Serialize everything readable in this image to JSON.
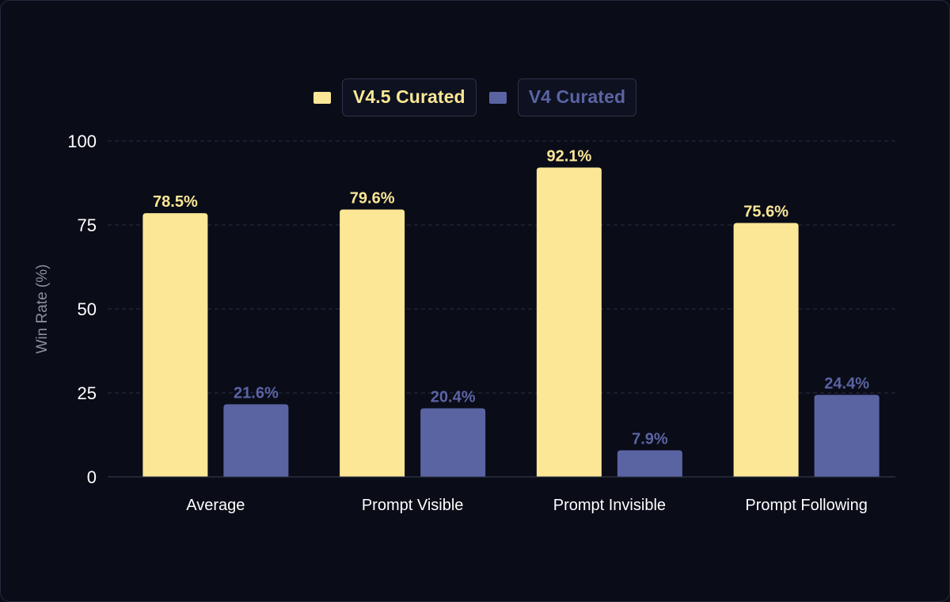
{
  "chart_data": {
    "type": "bar",
    "categories": [
      "Average",
      "Prompt Visible",
      "Prompt Invisible",
      "Prompt Following"
    ],
    "series": [
      {
        "name": "V4.5 Curated",
        "color": "#fbe795",
        "values": [
          78.5,
          79.6,
          92.1,
          75.6
        ],
        "labels": [
          "78.5%",
          "79.6%",
          "92.1%",
          "75.6%"
        ]
      },
      {
        "name": "V4 Curated",
        "color": "#5a64a3",
        "values": [
          21.6,
          20.4,
          7.9,
          24.4
        ],
        "labels": [
          "21.6%",
          "20.4%",
          "7.9%",
          "24.4%"
        ]
      }
    ],
    "ylabel": "Win Rate (%)",
    "xlabel": "",
    "ylim": [
      0,
      100
    ],
    "yticks": [
      0,
      25,
      50,
      75,
      100
    ],
    "grid": true,
    "legend": "top-center"
  },
  "colors": {
    "background": "#0a0c18",
    "grid": "#2a2e40",
    "axis": "#3a3e52"
  }
}
